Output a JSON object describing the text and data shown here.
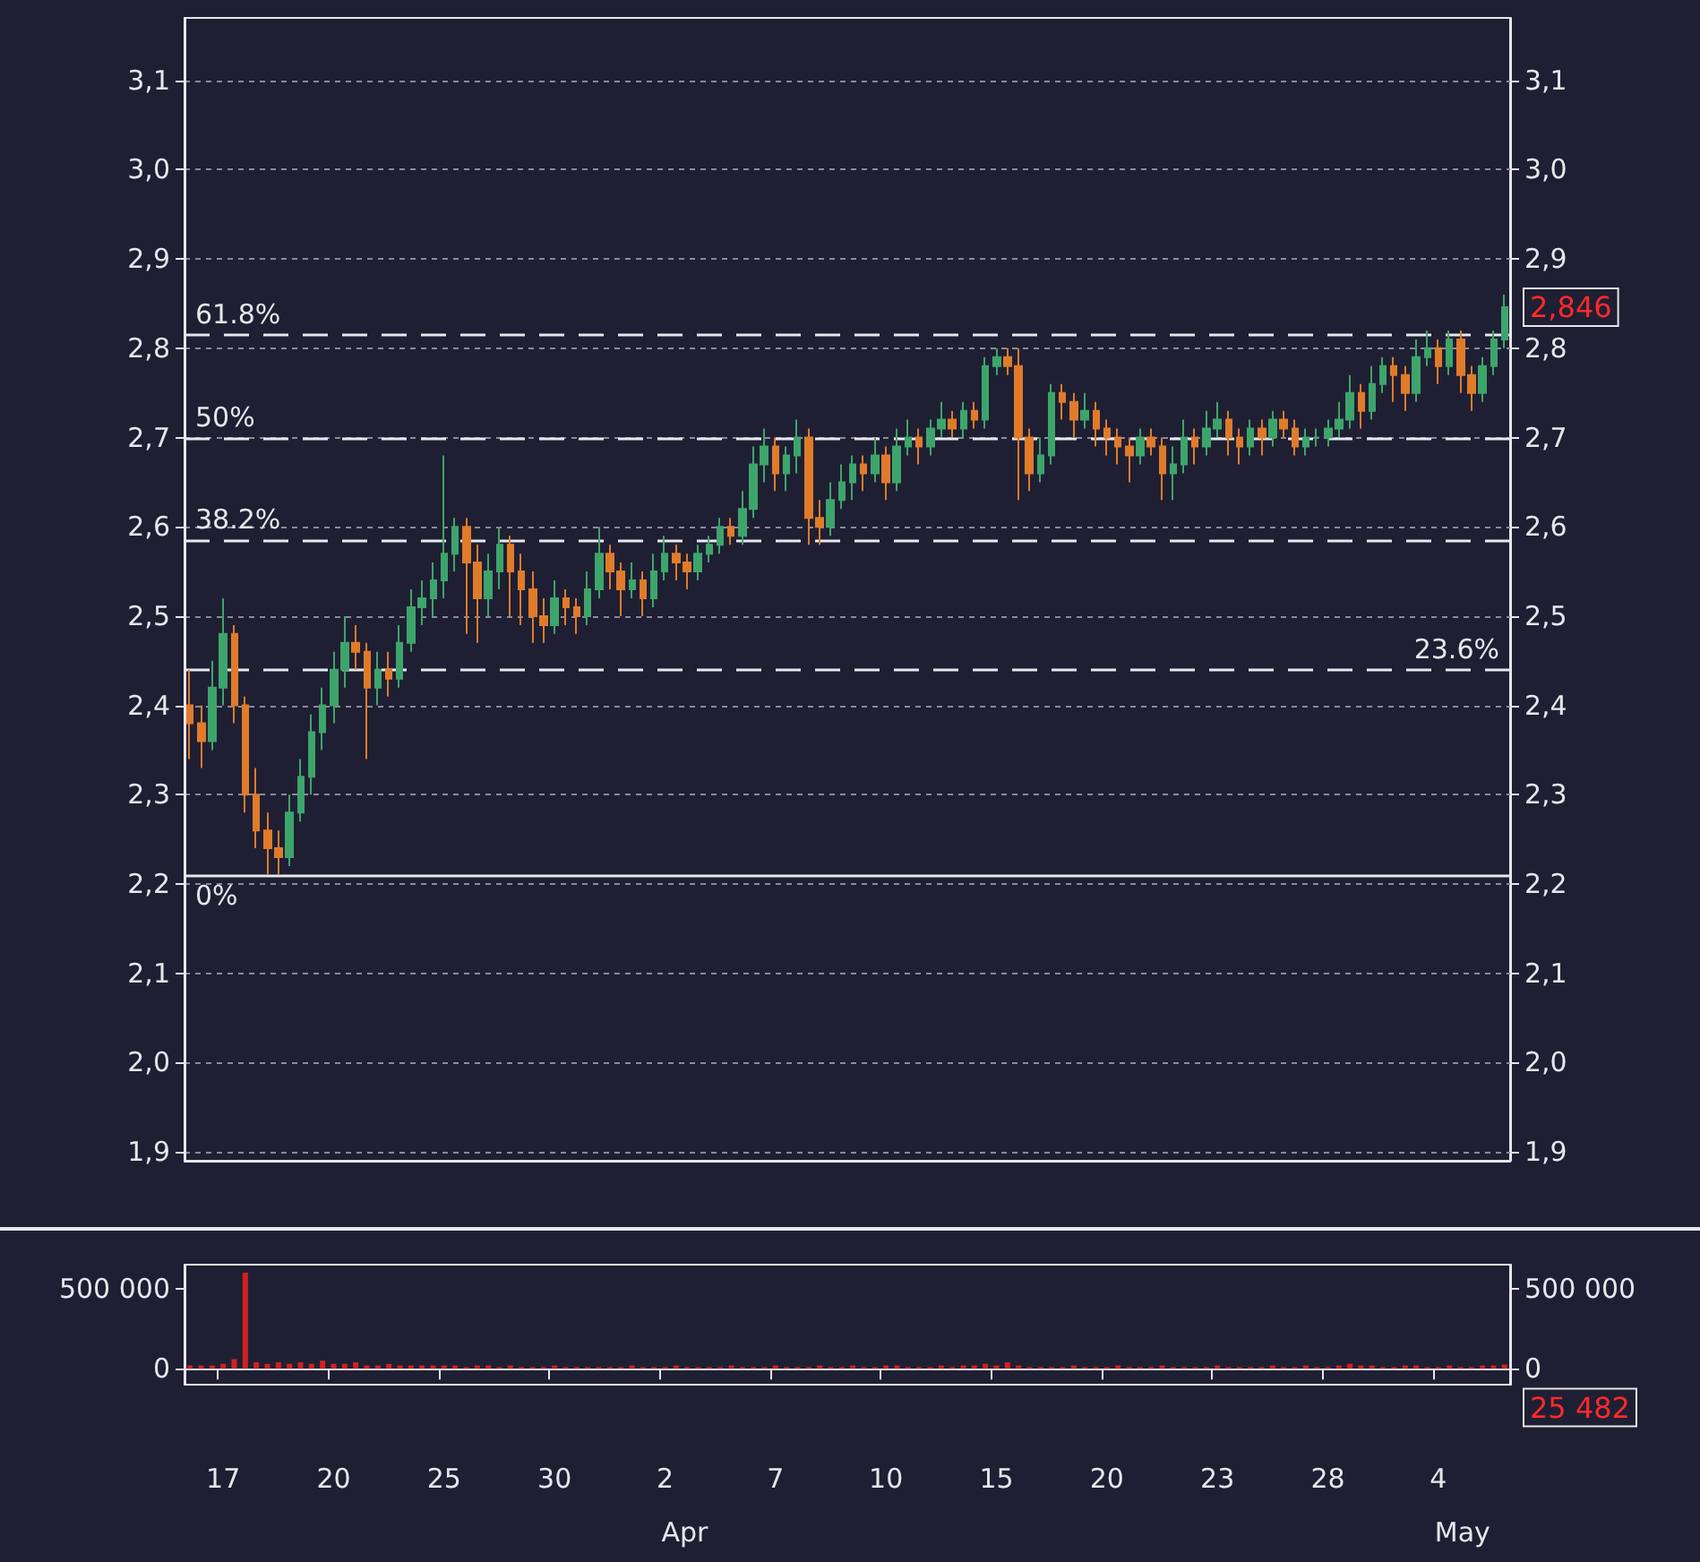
{
  "chart_data": [
    {
      "type": "candlestick",
      "categories": [
        null,
        null,
        null,
        "17",
        null,
        null,
        null,
        null,
        null,
        null,
        null,
        null,
        null,
        "20",
        null,
        null,
        null,
        null,
        null,
        null,
        null,
        null,
        null,
        "25",
        null,
        null,
        null,
        null,
        null,
        null,
        null,
        null,
        null,
        "30",
        null,
        null,
        null,
        null,
        null,
        null,
        null,
        null,
        null,
        "2",
        null,
        null,
        null,
        null,
        null,
        null,
        null,
        null,
        null,
        "7",
        null,
        null,
        null,
        null,
        null,
        null,
        null,
        null,
        null,
        "10",
        null,
        null,
        null,
        null,
        null,
        null,
        null,
        null,
        null,
        "15",
        null,
        null,
        null,
        null,
        null,
        null,
        null,
        null,
        null,
        "20",
        null,
        null,
        null,
        null,
        null,
        null,
        null,
        null,
        null,
        "23",
        null,
        null,
        null,
        null,
        null,
        null,
        null,
        null,
        null,
        "28",
        null,
        null,
        null,
        null,
        null,
        null,
        null,
        null,
        null,
        "4",
        null,
        null,
        null,
        null,
        null,
        null
      ],
      "ohlc": [
        [
          2.4,
          2.44,
          2.34,
          2.38
        ],
        [
          2.38,
          2.4,
          2.33,
          2.36
        ],
        [
          2.36,
          2.45,
          2.35,
          2.42
        ],
        [
          2.42,
          2.52,
          2.4,
          2.48
        ],
        [
          2.48,
          2.49,
          2.38,
          2.4
        ],
        [
          2.4,
          2.41,
          2.28,
          2.3
        ],
        [
          2.3,
          2.33,
          2.24,
          2.26
        ],
        [
          2.26,
          2.28,
          2.21,
          2.24
        ],
        [
          2.24,
          2.26,
          2.21,
          2.23
        ],
        [
          2.23,
          2.3,
          2.22,
          2.28
        ],
        [
          2.28,
          2.34,
          2.27,
          2.32
        ],
        [
          2.32,
          2.39,
          2.3,
          2.37
        ],
        [
          2.37,
          2.42,
          2.35,
          2.4
        ],
        [
          2.4,
          2.46,
          2.38,
          2.44
        ],
        [
          2.44,
          2.5,
          2.42,
          2.47
        ],
        [
          2.47,
          2.49,
          2.44,
          2.46
        ],
        [
          2.46,
          2.47,
          2.34,
          2.42
        ],
        [
          2.42,
          2.46,
          2.4,
          2.44
        ],
        [
          2.44,
          2.46,
          2.41,
          2.43
        ],
        [
          2.43,
          2.49,
          2.42,
          2.47
        ],
        [
          2.47,
          2.53,
          2.46,
          2.51
        ],
        [
          2.51,
          2.54,
          2.49,
          2.52
        ],
        [
          2.52,
          2.56,
          2.5,
          2.54
        ],
        [
          2.54,
          2.68,
          2.52,
          2.57
        ],
        [
          2.57,
          2.61,
          2.55,
          2.6
        ],
        [
          2.6,
          2.61,
          2.48,
          2.56
        ],
        [
          2.56,
          2.58,
          2.47,
          2.52
        ],
        [
          2.52,
          2.57,
          2.5,
          2.55
        ],
        [
          2.55,
          2.6,
          2.53,
          2.58
        ],
        [
          2.58,
          2.59,
          2.5,
          2.55
        ],
        [
          2.55,
          2.57,
          2.49,
          2.53
        ],
        [
          2.53,
          2.55,
          2.47,
          2.5
        ],
        [
          2.5,
          2.52,
          2.47,
          2.49
        ],
        [
          2.49,
          2.54,
          2.48,
          2.52
        ],
        [
          2.52,
          2.53,
          2.49,
          2.51
        ],
        [
          2.51,
          2.52,
          2.48,
          2.5
        ],
        [
          2.5,
          2.55,
          2.49,
          2.53
        ],
        [
          2.53,
          2.6,
          2.52,
          2.57
        ],
        [
          2.57,
          2.58,
          2.53,
          2.55
        ],
        [
          2.55,
          2.56,
          2.5,
          2.53
        ],
        [
          2.53,
          2.56,
          2.52,
          2.54
        ],
        [
          2.54,
          2.55,
          2.5,
          2.52
        ],
        [
          2.52,
          2.57,
          2.51,
          2.55
        ],
        [
          2.55,
          2.59,
          2.54,
          2.57
        ],
        [
          2.57,
          2.58,
          2.54,
          2.56
        ],
        [
          2.56,
          2.57,
          2.53,
          2.55
        ],
        [
          2.55,
          2.58,
          2.54,
          2.57
        ],
        [
          2.57,
          2.59,
          2.56,
          2.58
        ],
        [
          2.58,
          2.61,
          2.57,
          2.6
        ],
        [
          2.6,
          2.61,
          2.58,
          2.59
        ],
        [
          2.59,
          2.64,
          2.58,
          2.62
        ],
        [
          2.62,
          2.69,
          2.61,
          2.67
        ],
        [
          2.67,
          2.71,
          2.65,
          2.69
        ],
        [
          2.69,
          2.7,
          2.64,
          2.66
        ],
        [
          2.66,
          2.69,
          2.64,
          2.68
        ],
        [
          2.68,
          2.72,
          2.66,
          2.7
        ],
        [
          2.7,
          2.71,
          2.58,
          2.61
        ],
        [
          2.61,
          2.63,
          2.58,
          2.6
        ],
        [
          2.6,
          2.65,
          2.59,
          2.63
        ],
        [
          2.63,
          2.67,
          2.62,
          2.65
        ],
        [
          2.65,
          2.68,
          2.63,
          2.67
        ],
        [
          2.67,
          2.68,
          2.64,
          2.66
        ],
        [
          2.66,
          2.7,
          2.65,
          2.68
        ],
        [
          2.68,
          2.69,
          2.63,
          2.65
        ],
        [
          2.65,
          2.71,
          2.64,
          2.69
        ],
        [
          2.69,
          2.72,
          2.68,
          2.7
        ],
        [
          2.7,
          2.71,
          2.67,
          2.69
        ],
        [
          2.69,
          2.72,
          2.68,
          2.71
        ],
        [
          2.71,
          2.74,
          2.7,
          2.72
        ],
        [
          2.72,
          2.73,
          2.7,
          2.71
        ],
        [
          2.71,
          2.74,
          2.7,
          2.73
        ],
        [
          2.73,
          2.74,
          2.71,
          2.72
        ],
        [
          2.72,
          2.79,
          2.71,
          2.78
        ],
        [
          2.78,
          2.8,
          2.77,
          2.79
        ],
        [
          2.79,
          2.8,
          2.77,
          2.78
        ],
        [
          2.78,
          2.8,
          2.63,
          2.7
        ],
        [
          2.7,
          2.71,
          2.64,
          2.66
        ],
        [
          2.66,
          2.7,
          2.65,
          2.68
        ],
        [
          2.68,
          2.76,
          2.67,
          2.75
        ],
        [
          2.75,
          2.76,
          2.72,
          2.74
        ],
        [
          2.74,
          2.75,
          2.7,
          2.72
        ],
        [
          2.72,
          2.75,
          2.71,
          2.73
        ],
        [
          2.73,
          2.74,
          2.69,
          2.71
        ],
        [
          2.71,
          2.72,
          2.68,
          2.7
        ],
        [
          2.7,
          2.71,
          2.67,
          2.69
        ],
        [
          2.69,
          2.7,
          2.65,
          2.68
        ],
        [
          2.68,
          2.71,
          2.67,
          2.7
        ],
        [
          2.7,
          2.71,
          2.68,
          2.69
        ],
        [
          2.69,
          2.7,
          2.63,
          2.66
        ],
        [
          2.66,
          2.69,
          2.63,
          2.67
        ],
        [
          2.67,
          2.72,
          2.66,
          2.7
        ],
        [
          2.7,
          2.71,
          2.67,
          2.69
        ],
        [
          2.69,
          2.73,
          2.68,
          2.71
        ],
        [
          2.71,
          2.74,
          2.7,
          2.72
        ],
        [
          2.72,
          2.73,
          2.68,
          2.7
        ],
        [
          2.7,
          2.71,
          2.67,
          2.69
        ],
        [
          2.69,
          2.72,
          2.68,
          2.71
        ],
        [
          2.71,
          2.72,
          2.68,
          2.7
        ],
        [
          2.7,
          2.73,
          2.69,
          2.72
        ],
        [
          2.72,
          2.73,
          2.7,
          2.71
        ],
        [
          2.71,
          2.72,
          2.68,
          2.69
        ],
        [
          2.69,
          2.71,
          2.68,
          2.7
        ],
        [
          2.7,
          2.71,
          2.69,
          2.7
        ],
        [
          2.7,
          2.72,
          2.69,
          2.71
        ],
        [
          2.71,
          2.74,
          2.7,
          2.72
        ],
        [
          2.72,
          2.77,
          2.71,
          2.75
        ],
        [
          2.75,
          2.76,
          2.71,
          2.73
        ],
        [
          2.73,
          2.78,
          2.72,
          2.76
        ],
        [
          2.76,
          2.79,
          2.75,
          2.78
        ],
        [
          2.78,
          2.79,
          2.74,
          2.77
        ],
        [
          2.77,
          2.78,
          2.73,
          2.75
        ],
        [
          2.75,
          2.81,
          2.74,
          2.79
        ],
        [
          2.79,
          2.82,
          2.78,
          2.8
        ],
        [
          2.8,
          2.81,
          2.76,
          2.78
        ],
        [
          2.78,
          2.82,
          2.77,
          2.81
        ],
        [
          2.81,
          2.82,
          2.75,
          2.77
        ],
        [
          2.77,
          2.78,
          2.73,
          2.75
        ],
        [
          2.75,
          2.79,
          2.74,
          2.78
        ],
        [
          2.78,
          2.82,
          2.77,
          2.81
        ],
        [
          2.81,
          2.86,
          2.8,
          2.846
        ]
      ],
      "colors": [
        "#e07b2a",
        "#e07b2a",
        "#3da56b",
        "#3da56b",
        "#e07b2a",
        "#e07b2a",
        "#e07b2a",
        "#e07b2a",
        "#e07b2a",
        "#3da56b",
        "#3da56b",
        "#3da56b",
        "#3da56b",
        "#3da56b",
        "#3da56b",
        "#e07b2a",
        "#e07b2a",
        "#3da56b",
        "#e07b2a",
        "#3da56b",
        "#3da56b",
        "#3da56b",
        "#3da56b",
        "#3da56b",
        "#3da56b",
        "#e07b2a",
        "#e07b2a",
        "#3da56b",
        "#3da56b",
        "#e07b2a",
        "#e07b2a",
        "#e07b2a",
        "#e07b2a",
        "#3da56b",
        "#e07b2a",
        "#e07b2a",
        "#3da56b",
        "#3da56b",
        "#e07b2a",
        "#e07b2a",
        "#3da56b",
        "#e07b2a",
        "#3da56b",
        "#3da56b",
        "#e07b2a",
        "#e07b2a",
        "#3da56b",
        "#3da56b",
        "#3da56b",
        "#e07b2a",
        "#3da56b",
        "#3da56b",
        "#3da56b",
        "#e07b2a",
        "#3da56b",
        "#3da56b",
        "#e07b2a",
        "#e07b2a",
        "#3da56b",
        "#3da56b",
        "#3da56b",
        "#e07b2a",
        "#3da56b",
        "#e07b2a",
        "#3da56b",
        "#3da56b",
        "#e07b2a",
        "#3da56b",
        "#3da56b",
        "#e07b2a",
        "#3da56b",
        "#e07b2a",
        "#3da56b",
        "#3da56b",
        "#e07b2a",
        "#e07b2a",
        "#e07b2a",
        "#3da56b",
        "#3da56b",
        "#e07b2a",
        "#e07b2a",
        "#3da56b",
        "#e07b2a",
        "#e07b2a",
        "#e07b2a",
        "#e07b2a",
        "#3da56b",
        "#e07b2a",
        "#e07b2a",
        "#3da56b",
        "#3da56b",
        "#e07b2a",
        "#3da56b",
        "#3da56b",
        "#e07b2a",
        "#e07b2a",
        "#3da56b",
        "#e07b2a",
        "#3da56b",
        "#e07b2a",
        "#e07b2a",
        "#3da56b",
        "#3da56b",
        "#3da56b",
        "#3da56b",
        "#3da56b",
        "#e07b2a",
        "#3da56b",
        "#3da56b",
        "#e07b2a",
        "#e07b2a",
        "#3da56b",
        "#3da56b",
        "#e07b2a",
        "#3da56b",
        "#e07b2a",
        "#e07b2a",
        "#3da56b",
        "#3da56b",
        "#3da56b"
      ],
      "ylim": [
        1.89,
        3.17
      ],
      "yticks": [
        {
          "value": 1.9,
          "label": "1,9"
        },
        {
          "value": 2.0,
          "label": "2,0"
        },
        {
          "value": 2.1,
          "label": "2,1"
        },
        {
          "value": 2.2,
          "label": "2,2"
        },
        {
          "value": 2.3,
          "label": "2,3"
        },
        {
          "value": 2.4,
          "label": "2,4"
        },
        {
          "value": 2.5,
          "label": "2,5"
        },
        {
          "value": 2.6,
          "label": "2,6"
        },
        {
          "value": 2.7,
          "label": "2,7"
        },
        {
          "value": 2.8,
          "label": "2,8"
        },
        {
          "value": 2.9,
          "label": "2,9"
        },
        {
          "value": 3.0,
          "label": "3,0"
        },
        {
          "value": 3.1,
          "label": "3,1"
        }
      ],
      "y2lim": [
        1.89,
        3.17
      ],
      "y2ticks": [
        {
          "value": 1.9,
          "label": "1,9"
        },
        {
          "value": 2.0,
          "label": "2,0"
        },
        {
          "value": 2.1,
          "label": "2,1"
        },
        {
          "value": 2.2,
          "label": "2,2"
        },
        {
          "value": 2.3,
          "label": "2,3"
        },
        {
          "value": 2.4,
          "label": "2,4"
        },
        {
          "value": 2.5,
          "label": "2,5"
        },
        {
          "value": 2.6,
          "label": "2,6"
        },
        {
          "value": 2.7,
          "label": "2,7"
        },
        {
          "value": 2.8,
          "label": "2,8"
        },
        {
          "value": 2.9,
          "label": "2,9"
        },
        {
          "value": 3.0,
          "label": "3,0"
        },
        {
          "value": 3.1,
          "label": "3,1"
        }
      ],
      "ref_lines": [
        {
          "axis": "y",
          "value": 2.21,
          "line_style": "solid"
        },
        {
          "axis": "y",
          "value": 2.44,
          "line_style": "dashed"
        },
        {
          "axis": "y",
          "value": 2.585,
          "line_style": "dashed"
        },
        {
          "axis": "y",
          "value": 2.7,
          "line_style": "dashed"
        },
        {
          "axis": "y",
          "value": 2.815,
          "line_style": "dashed"
        }
      ],
      "annotations": [
        {
          "text": "0%",
          "y": 2.21
        },
        {
          "text": "23.6%",
          "y": 2.44
        },
        {
          "text": "38.2%",
          "y": 2.585
        },
        {
          "text": "50%",
          "y": 2.7
        },
        {
          "text": "61.8%",
          "y": 2.815
        },
        "2,846"
      ],
      "grid": "y",
      "tick_labels": "y"
    },
    {
      "type": "bar",
      "categories": [
        null,
        null,
        null,
        "17",
        null,
        null,
        null,
        null,
        null,
        null,
        null,
        null,
        null,
        "20",
        null,
        null,
        null,
        null,
        null,
        null,
        null,
        null,
        null,
        "25",
        null,
        null,
        null,
        null,
        null,
        null,
        null,
        null,
        null,
        "30",
        null,
        null,
        null,
        null,
        null,
        null,
        null,
        null,
        null,
        "2",
        null,
        null,
        null,
        null,
        null,
        null,
        null,
        null,
        null,
        "7",
        null,
        null,
        null,
        null,
        null,
        null,
        null,
        null,
        null,
        "10",
        null,
        null,
        null,
        null,
        null,
        null,
        null,
        null,
        null,
        "15",
        null,
        null,
        null,
        null,
        null,
        null,
        null,
        null,
        null,
        "20",
        null,
        null,
        null,
        null,
        null,
        null,
        null,
        null,
        null,
        "23",
        null,
        null,
        null,
        null,
        null,
        null,
        null,
        null,
        null,
        "28",
        null,
        null,
        null,
        null,
        null,
        null,
        null,
        null,
        null,
        "4",
        null,
        null,
        null,
        null,
        null,
        null
      ],
      "values": [
        20000,
        20000,
        20000,
        30000,
        60000,
        600000,
        40000,
        30000,
        40000,
        30000,
        40000,
        30000,
        50000,
        30000,
        30000,
        40000,
        20000,
        20000,
        30000,
        20000,
        20000,
        20000,
        20000,
        20000,
        20000,
        10000,
        20000,
        20000,
        10000,
        20000,
        10000,
        10000,
        10000,
        20000,
        10000,
        10000,
        10000,
        10000,
        10000,
        10000,
        20000,
        10000,
        10000,
        10000,
        20000,
        10000,
        10000,
        10000,
        10000,
        20000,
        10000,
        10000,
        10000,
        20000,
        10000,
        10000,
        10000,
        20000,
        10000,
        10000,
        20000,
        10000,
        10000,
        20000,
        20000,
        10000,
        10000,
        10000,
        20000,
        10000,
        20000,
        20000,
        30000,
        20000,
        40000,
        20000,
        10000,
        10000,
        10000,
        10000,
        20000,
        10000,
        10000,
        10000,
        20000,
        10000,
        10000,
        10000,
        20000,
        10000,
        10000,
        10000,
        10000,
        20000,
        10000,
        10000,
        10000,
        10000,
        20000,
        10000,
        10000,
        20000,
        10000,
        10000,
        20000,
        30000,
        20000,
        20000,
        10000,
        10000,
        20000,
        20000,
        10000,
        10000,
        20000,
        10000,
        10000,
        20000,
        20000,
        25482
      ],
      "color": "#d42020",
      "ylim": [
        -100000,
        650000
      ],
      "yticks": [
        {
          "value": 0,
          "label": "0"
        },
        {
          "value": 500000,
          "label": "500 000"
        }
      ],
      "y2lim": [
        -100000,
        650000
      ],
      "y2ticks": [
        {
          "value": 0,
          "label": "0"
        },
        {
          "value": 500000,
          "label": "500 000"
        }
      ],
      "annotations": [
        "25 482",
        "Apr",
        "May"
      ]
    }
  ]
}
